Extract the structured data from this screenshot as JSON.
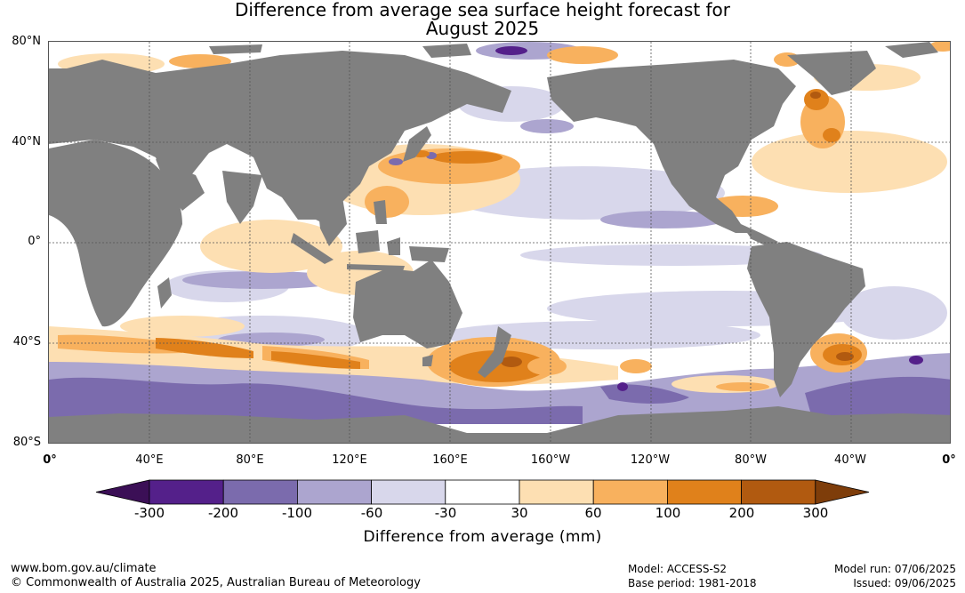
{
  "title": {
    "line1": "Difference from average sea surface height forecast for",
    "line2": "August 2025"
  },
  "map": {
    "lat_labels": [
      "80°N",
      "40°N",
      "0°",
      "40°S",
      "80°S"
    ],
    "lon_labels": [
      "0°",
      "40°E",
      "80°E",
      "120°E",
      "160°E",
      "160°W",
      "120°W",
      "80°W",
      "40°W",
      "0°"
    ],
    "land_color": "#808080",
    "grid_color": "#555555"
  },
  "colorbar": {
    "ticks": [
      "-300",
      "-200",
      "-100",
      "-60",
      "-30",
      "30",
      "60",
      "100",
      "200",
      "300"
    ],
    "colors": [
      "#3b0f56",
      "#54208a",
      "#7b6bad",
      "#aca5cf",
      "#d8d7eb",
      "#ffffff",
      "#fddfb2",
      "#f8b15e",
      "#e0811b",
      "#b15a10",
      "#7e3d0a"
    ],
    "label": "Difference from average (mm)"
  },
  "footer": {
    "website": "www.bom.gov.au/climate",
    "copyright": "© Commonwealth of Australia 2025, Australian Bureau of Meteorology",
    "model": "Model: ACCESS-S2",
    "base_period": "Base period: 1981-2018",
    "model_run": "Model run: 07/06/2025",
    "issued": "Issued: 09/06/2025"
  }
}
